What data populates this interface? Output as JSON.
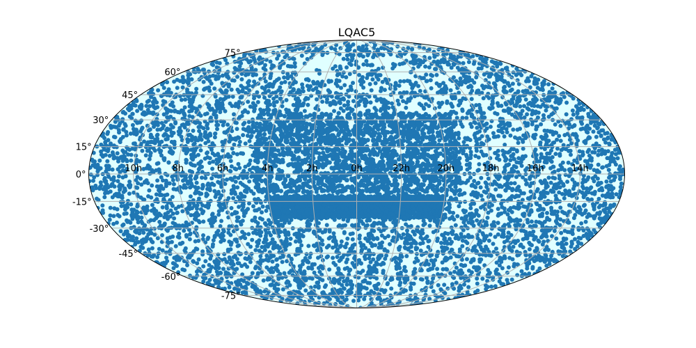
{
  "chart_data": {
    "type": "scatter",
    "projection": "mollweide",
    "title": "LQAC5",
    "xlabel": "",
    "ylabel": "",
    "x_tick_labels": [
      "10h",
      "8h",
      "6h",
      "4h",
      "2h",
      "0h",
      "22h",
      "20h",
      "18h",
      "16h",
      "14h"
    ],
    "y_tick_labels": [
      "-75°",
      "-60°",
      "-45°",
      "-30°",
      "-15°",
      "0°",
      "15°",
      "30°",
      "45°",
      "60°",
      "75°"
    ],
    "y_ticks_deg": [
      -75,
      -60,
      -45,
      -30,
      -15,
      0,
      15,
      30,
      45,
      60,
      75
    ],
    "x_ticks_deg": [
      150,
      120,
      90,
      60,
      30,
      0,
      -30,
      -60,
      -90,
      -120,
      -150
    ],
    "grid": true,
    "colors": {
      "background_fill": "#e0ffff",
      "point_color": "#1f77b4",
      "grid_color": "#b0b0b0",
      "outline_color": "#000000"
    },
    "series": [
      {
        "marker": "circle",
        "density_regions": [
          {
            "lon_range": [
              -180,
              180
            ],
            "lat_range": [
              -90,
              90
            ],
            "density": "dense"
          }
        ],
        "sparse_regions_description_visible": false
      }
    ]
  }
}
